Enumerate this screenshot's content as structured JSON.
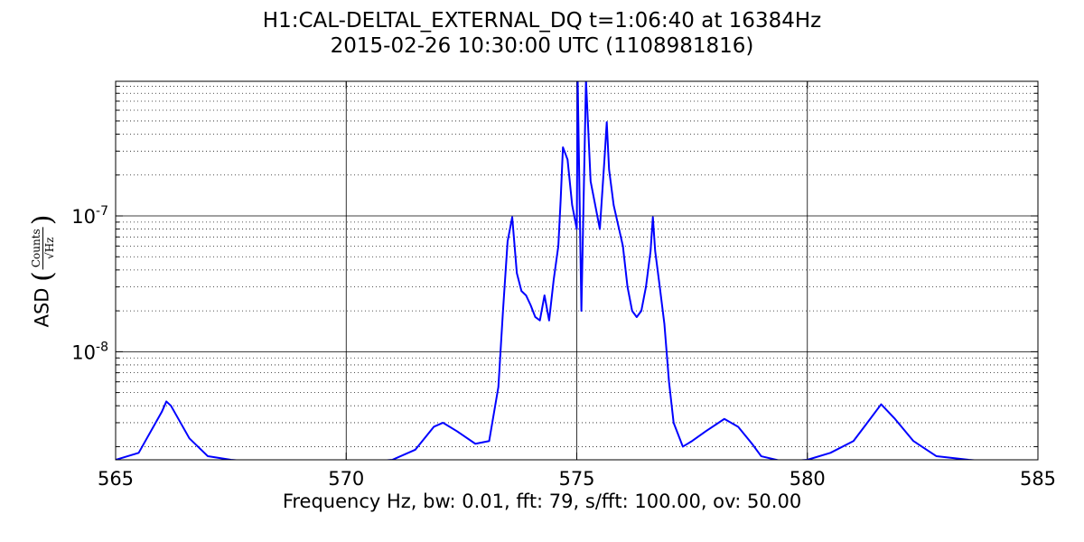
{
  "chart_data": {
    "type": "line",
    "title_line1": "H1:CAL-DELTAL_EXTERNAL_DQ t=1:06:40 at 16384Hz",
    "title_line2": "2015-02-26 10:30:00 UTC (1108981816)",
    "xlabel": "Frequency Hz,  bw: 0.01, fft: 79, s/fft: 100.00, ov: 50.00",
    "ylabel": "ASD",
    "ylabel_unit_num": "Counts",
    "ylabel_unit_den": "√Hz",
    "xlim": [
      565,
      585
    ],
    "ylim": [
      1.6e-09,
      9.8e-07
    ],
    "yscale": "log",
    "x_ticks": [
      "565",
      "570",
      "575",
      "580",
      "585"
    ],
    "y_ticks": [
      {
        "base": "10",
        "exp": "-8"
      },
      {
        "base": "10",
        "exp": "-7"
      }
    ],
    "grid": true,
    "line_color": "#0000ff",
    "series": [
      {
        "x": [
          565.0,
          565.5,
          566.0,
          566.1,
          566.2,
          566.6,
          567.0,
          567.5,
          568.0,
          568.5,
          569.0,
          569.5,
          570.0,
          570.5,
          571.0,
          571.5,
          571.9,
          572.1,
          572.4,
          572.8,
          573.1,
          573.3,
          573.4,
          573.5,
          573.6,
          573.7,
          573.8,
          573.9,
          574.0,
          574.1,
          574.2,
          574.3,
          574.4,
          574.5,
          574.6,
          574.65,
          574.7,
          574.8,
          574.9,
          575.0,
          575.02,
          575.1,
          575.2,
          575.3,
          575.4,
          575.5,
          575.6,
          575.65,
          575.7,
          575.8,
          576.0,
          576.1,
          576.2,
          576.3,
          576.4,
          576.5,
          576.6,
          576.65,
          576.7,
          576.8,
          576.9,
          577.0,
          577.1,
          577.3,
          577.5,
          577.8,
          578.2,
          578.5,
          578.8,
          579.0,
          579.5,
          580.0,
          580.5,
          581.0,
          581.3,
          581.6,
          581.9,
          582.3,
          582.8,
          583.5,
          584.0,
          585.0
        ],
        "y": [
          1.6e-09,
          1.8e-09,
          3.6e-09,
          4.3e-09,
          4e-09,
          2.3e-09,
          1.7e-09,
          1.6e-09,
          1.55e-09,
          1.55e-09,
          1.5e-09,
          1.5e-09,
          1.5e-09,
          1.55e-09,
          1.6e-09,
          1.9e-09,
          2.8e-09,
          3e-09,
          2.6e-09,
          2.1e-09,
          2.2e-09,
          5.5e-09,
          2e-08,
          6.5e-08,
          9.8e-08,
          3.8e-08,
          2.8e-08,
          2.6e-08,
          2.2e-08,
          1.8e-08,
          1.7e-08,
          2.6e-08,
          1.7e-08,
          3.4e-08,
          6e-08,
          1.3e-07,
          3.2e-07,
          2.6e-07,
          1.2e-07,
          8e-08,
          1e-06,
          2e-08,
          1e-06,
          1.8e-07,
          1.2e-07,
          8e-08,
          2.6e-07,
          4.9e-07,
          2.2e-07,
          1.2e-07,
          6e-08,
          3e-08,
          2e-08,
          1.8e-08,
          2e-08,
          3e-08,
          5.5e-08,
          9.8e-08,
          5.5e-08,
          3e-08,
          1.6e-08,
          6e-09,
          3e-09,
          2e-09,
          2.2e-09,
          2.6e-09,
          3.2e-09,
          2.8e-09,
          2.1e-09,
          1.7e-09,
          1.55e-09,
          1.6e-09,
          1.8e-09,
          2.2e-09,
          3e-09,
          4.1e-09,
          3.2e-09,
          2.2e-09,
          1.7e-09,
          1.6e-09,
          1.55e-09,
          1.55e-09
        ]
      }
    ]
  }
}
